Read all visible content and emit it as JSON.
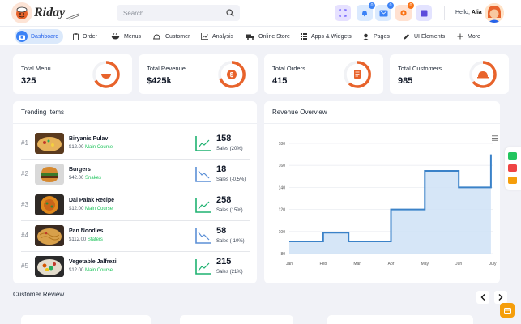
{
  "brand": {
    "name": "Riday"
  },
  "search": {
    "placeholder": "Search"
  },
  "header": {
    "badges": [
      "0",
      "0",
      "0"
    ],
    "greeting": "Hello,",
    "user": "Alia",
    "colors": {
      "purple": "#e6e1ff",
      "blue": "#dbeafe",
      "orange": "#ffe1d1",
      "indigo": "#e3e3ff"
    }
  },
  "nav": {
    "items": [
      {
        "label": "Dashboard",
        "icon": "camera-icon"
      },
      {
        "label": "Order",
        "icon": "clipboard-icon"
      },
      {
        "label": "Menus",
        "icon": "bowl-icon"
      },
      {
        "label": "Customer",
        "icon": "plate-icon"
      },
      {
        "label": "Analysis",
        "icon": "chart-icon"
      },
      {
        "label": "Online Store",
        "icon": "truck-icon"
      },
      {
        "label": "Apps & Widgets",
        "icon": "grid-icon"
      },
      {
        "label": "Pages",
        "icon": "chef-icon"
      },
      {
        "label": "UI Elements",
        "icon": "pen-icon"
      },
      {
        "label": "More",
        "icon": "plus-icon"
      }
    ]
  },
  "stats": [
    {
      "label": "Total Menu",
      "value": "325",
      "icon": "bowl-icon"
    },
    {
      "label": "Total Revenue",
      "value": "$425k",
      "icon": "dollar-icon"
    },
    {
      "label": "Total Orders",
      "value": "415",
      "icon": "receipt-icon"
    },
    {
      "label": "Total Customers",
      "value": "985",
      "icon": "cloche-icon"
    }
  ],
  "accent": "#e8632b",
  "trending": {
    "title": "Trending Items",
    "items": [
      {
        "rank": "#1",
        "name": "Biryanis Pulav",
        "price": "$12.00",
        "category": "Main Course",
        "count": "158",
        "sales": "Sales (20%)",
        "trend": "up"
      },
      {
        "rank": "#2",
        "name": "Burgers",
        "price": "$42.00",
        "category": "Snakes",
        "count": "18",
        "sales": "Sales (-0.5%)",
        "trend": "down"
      },
      {
        "rank": "#3",
        "name": "Dal Palak Recipe",
        "price": "$12.00",
        "category": "Main Course",
        "count": "258",
        "sales": "Sales (15%)",
        "trend": "up"
      },
      {
        "rank": "#4",
        "name": "Pan Noodles",
        "price": "$112.00",
        "category": "Staters",
        "count": "58",
        "sales": "Sales (-10%)",
        "trend": "down"
      },
      {
        "rank": "#5",
        "name": "Vegetable Jalfrezi",
        "price": "$12.00",
        "category": "Main Course",
        "count": "215",
        "sales": "Sales (21%)",
        "trend": "up"
      }
    ]
  },
  "revenue": {
    "title": "Revenue Overview"
  },
  "chart_data": {
    "type": "area",
    "title": "Revenue Overview",
    "step": true,
    "categories": [
      "Jan",
      "Feb",
      "Mar",
      "Apr",
      "May",
      "Jun",
      "July"
    ],
    "points": [
      {
        "x": 0,
        "y": 91
      },
      {
        "x": 1,
        "y": 91
      },
      {
        "x": 1,
        "y": 99
      },
      {
        "x": 1.75,
        "y": 99
      },
      {
        "x": 1.75,
        "y": 91
      },
      {
        "x": 3,
        "y": 91
      },
      {
        "x": 3,
        "y": 120
      },
      {
        "x": 4,
        "y": 120
      },
      {
        "x": 4,
        "y": 155
      },
      {
        "x": 5,
        "y": 155
      },
      {
        "x": 5,
        "y": 140
      },
      {
        "x": 5.95,
        "y": 140
      },
      {
        "x": 5.95,
        "y": 170
      }
    ],
    "yticks": [
      80,
      100,
      120,
      140,
      160,
      180
    ],
    "ylim": [
      80,
      180
    ],
    "grid": true,
    "color": "#3b82c8",
    "fill": "#cfe2f6"
  },
  "review": {
    "title": "Customer Review"
  }
}
